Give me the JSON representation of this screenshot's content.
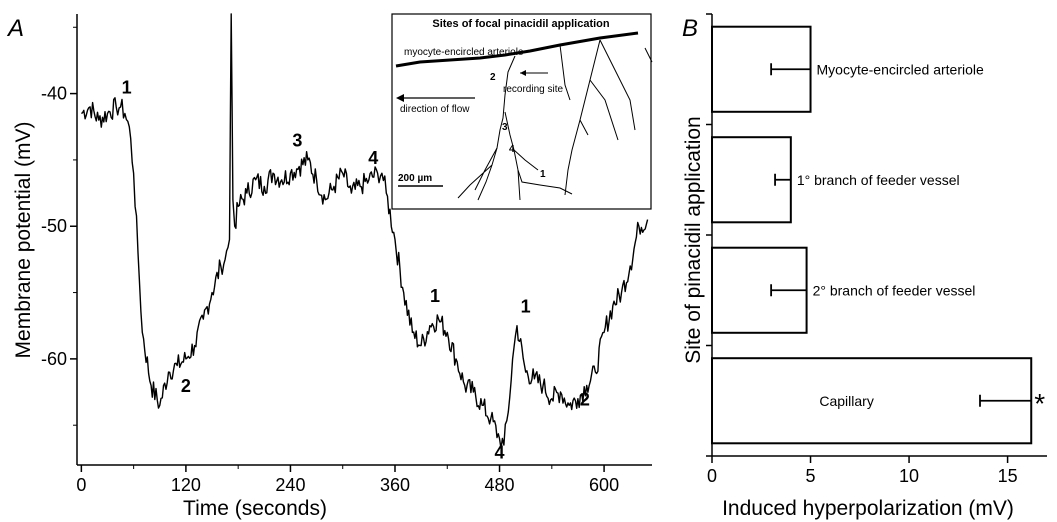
{
  "panel_a": {
    "letter": "A",
    "inset": {
      "title": "Sites of focal pinacidil application",
      "labels": {
        "vessel": "myocyte-encircled arteriole",
        "recording": "recording site",
        "flow": "direction of flow",
        "scale": "200 µm"
      },
      "site_numbers": [
        "1",
        "2",
        "3",
        "4"
      ]
    }
  },
  "panel_b": {
    "letter": "B",
    "star": "*"
  },
  "chart_data": [
    {
      "type": "line",
      "xlabel": "Time (seconds)",
      "ylabel": "Membrane potential (mV)",
      "xlim": [
        -5,
        655
      ],
      "ylim": [
        -68,
        -34
      ],
      "xticks": [
        0,
        120,
        240,
        360,
        480,
        600
      ],
      "yticks": [
        -40,
        -50,
        -60
      ],
      "grid": false,
      "series": [
        {
          "x": [
            0,
            10,
            20,
            30,
            40,
            45,
            50,
            55,
            60,
            65,
            70,
            80,
            90,
            100,
            110,
            120,
            130,
            140,
            150,
            160,
            165,
            170,
            172,
            174,
            176,
            180,
            190,
            200,
            210,
            220,
            230,
            240,
            250,
            260,
            270,
            280,
            290,
            300,
            310,
            320,
            330,
            340,
            345,
            350,
            360,
            370,
            380,
            390,
            400,
            410,
            420,
            430,
            440,
            450,
            460,
            470,
            480,
            485,
            490,
            495,
            500,
            510,
            520,
            530,
            540,
            550,
            560,
            570,
            580,
            590,
            600,
            610,
            620,
            630,
            640,
            650
          ],
          "y": [
            -41.5,
            -41,
            -42,
            -41.5,
            -41,
            -41,
            -41.5,
            -42.5,
            -46,
            -52,
            -58,
            -62,
            -63.5,
            -61,
            -60.5,
            -60,
            -59,
            -57,
            -55,
            -53,
            -52.5,
            -51,
            -34,
            -48,
            -50,
            -48.5,
            -47.5,
            -46.5,
            -47,
            -46,
            -46.5,
            -46,
            -45.5,
            -45,
            -46.5,
            -48,
            -47,
            -46,
            -47.5,
            -47,
            -46.5,
            -46,
            -46,
            -47.5,
            -51,
            -55,
            -58,
            -59,
            -57.5,
            -57,
            -58,
            -60,
            -62,
            -62.5,
            -63.5,
            -64.5,
            -66,
            -66.5,
            -64,
            -60,
            -57.5,
            -61,
            -61.5,
            -62,
            -63,
            -62.5,
            -63.5,
            -63,
            -62,
            -61,
            -58,
            -56,
            -55,
            -53,
            -50,
            -49.5
          ]
        }
      ],
      "annotations": [
        {
          "label": "1",
          "x": 52,
          "y": -40
        },
        {
          "label": "2",
          "x": 120,
          "y": -62.5
        },
        {
          "label": "3",
          "x": 248,
          "y": -44
        },
        {
          "label": "4",
          "x": 335,
          "y": -45.3
        },
        {
          "label": "1",
          "x": 406,
          "y": -55.7
        },
        {
          "label": "1",
          "x": 510,
          "y": -56.5
        },
        {
          "label": "2",
          "x": 578,
          "y": -63.5
        },
        {
          "label": "4",
          "x": 480,
          "y": -67.5
        }
      ]
    },
    {
      "type": "bar",
      "orientation": "horizontal",
      "xlabel": "Induced hyperpolarization (mV)",
      "ylabel": "Site of pinacidil application",
      "xlim": [
        0,
        17
      ],
      "xticks": [
        0,
        5,
        10,
        15
      ],
      "categories": [
        "Myocyte-encircled arteriole",
        "1° branch of feeder vessel",
        "2° branch of feeder vessel",
        "Capillary"
      ],
      "values": [
        5.0,
        4.0,
        4.8,
        16.2
      ],
      "errors": [
        2.0,
        0.8,
        1.8,
        2.6
      ],
      "significance": [
        false,
        false,
        false,
        true
      ]
    }
  ]
}
